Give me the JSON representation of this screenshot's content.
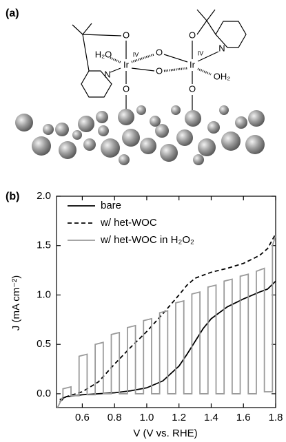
{
  "figure_a": {
    "label": "(a)",
    "atoms": [
      "H₂O",
      "Ir",
      "IV",
      "O",
      "N",
      "O",
      "O",
      "O",
      "Ir",
      "IV",
      "O",
      "N",
      "OH₂",
      "O"
    ]
  },
  "chart_data": {
    "type": "line",
    "label": "(b)",
    "xlabel": "V (V vs. RHE)",
    "ylabel": "J (mA cm⁻²)",
    "x": [
      0.46,
      0.5,
      0.6,
      0.7,
      0.8,
      0.9,
      1.0,
      1.1,
      1.2,
      1.25,
      1.3,
      1.35,
      1.4,
      1.5,
      1.6,
      1.7,
      1.75,
      1.8
    ],
    "series": [
      {
        "name": "bare",
        "color": "#000000",
        "linestyle": "solid",
        "values": [
          -0.06,
          -0.03,
          -0.01,
          0,
          0.01,
          0.03,
          0.06,
          0.13,
          0.28,
          0.4,
          0.53,
          0.66,
          0.76,
          0.88,
          0.96,
          1.03,
          1.06,
          1.14
        ]
      },
      {
        "name": "w/ het-WOC",
        "color": "#000000",
        "linestyle": "dashed",
        "values": [
          -0.08,
          -0.03,
          0.02,
          0.12,
          0.3,
          0.47,
          0.63,
          0.81,
          1.0,
          1.1,
          1.17,
          1.2,
          1.23,
          1.27,
          1.32,
          1.4,
          1.47,
          1.62
        ]
      },
      {
        "name": "w/ het-WOC in H₂O₂",
        "color": "#9a9a9a",
        "linestyle": "solid",
        "x": [
          0.44,
          0.48,
          0.48,
          0.53,
          0.53,
          0.58,
          0.58,
          0.63,
          0.63,
          0.68,
          0.68,
          0.73,
          0.73,
          0.78,
          0.78,
          0.83,
          0.83,
          0.88,
          0.88,
          0.93,
          0.93,
          0.98,
          0.98,
          1.03,
          1.03,
          1.08,
          1.08,
          1.13,
          1.13,
          1.18,
          1.18,
          1.23,
          1.23,
          1.28,
          1.28,
          1.33,
          1.33,
          1.38,
          1.38,
          1.43,
          1.43,
          1.48,
          1.48,
          1.53,
          1.53,
          1.58,
          1.58,
          1.63,
          1.63,
          1.68,
          1.68,
          1.73,
          1.73,
          1.78,
          1.78,
          1.8
        ],
        "values": [
          -0.16,
          -0.03,
          0.05,
          0.07,
          -0.02,
          -0.02,
          0.38,
          0.4,
          -0.01,
          -0.01,
          0.5,
          0.52,
          0,
          0,
          0.6,
          0.62,
          0,
          0,
          0.67,
          0.69,
          0,
          0,
          0.74,
          0.76,
          0,
          0,
          0.82,
          0.84,
          0,
          0,
          0.92,
          0.94,
          0,
          0,
          1.01,
          1.03,
          0,
          0,
          1.08,
          1.1,
          0,
          0,
          1.14,
          1.16,
          0,
          0,
          1.19,
          1.21,
          0,
          0,
          1.24,
          1.27,
          0.02,
          0.02,
          1.5,
          1.6
        ]
      }
    ],
    "xlim": [
      0.44,
      1.8
    ],
    "ylim": [
      -0.14,
      2.0
    ],
    "xticks": [
      0.6,
      0.8,
      {
        "value": 1,
        "label": "1.0"
      },
      1.2,
      1.4,
      1.6,
      1.8
    ],
    "yticks": [
      {
        "value": 0,
        "label": "0.0"
      },
      0.5,
      {
        "value": 1,
        "label": "1.0"
      },
      1.5,
      {
        "value": 2,
        "label": "2.0"
      }
    ],
    "legend": "upper left",
    "grid": false
  }
}
